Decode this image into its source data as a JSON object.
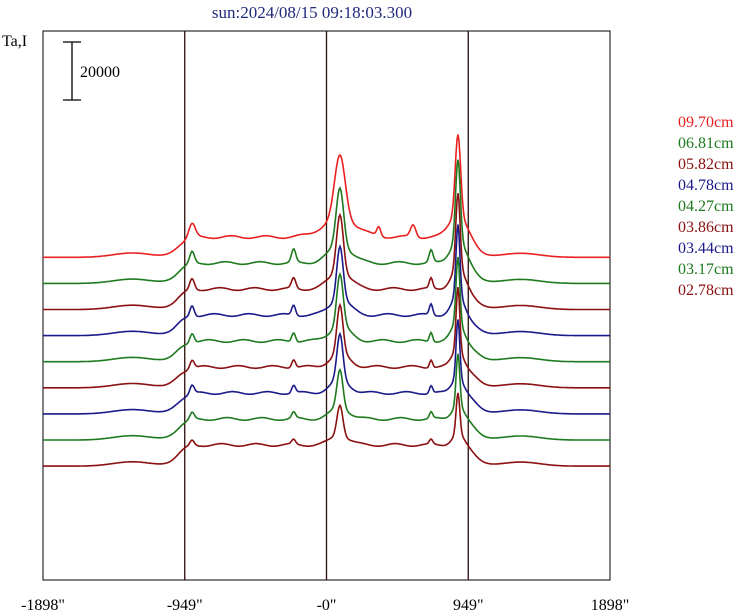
{
  "chart_data": {
    "type": "line",
    "title": "sun:2024/08/15 09:18:03.300",
    "ylabel": "Ta,I",
    "xlabel": "",
    "scale_bar_label": "20000",
    "scale_bar_value": 20000,
    "x_ticks": [
      {
        "value": -1898,
        "label": "-1898\""
      },
      {
        "value": -949,
        "label": "-949\""
      },
      {
        "value": 0,
        "label": "-0\""
      },
      {
        "value": 949,
        "label": "949\""
      },
      {
        "value": 1898,
        "label": "1898\""
      }
    ],
    "xlim": [
      -1898,
      1898
    ],
    "vertical_markers": [
      -949,
      0,
      949
    ],
    "legend_position": "right",
    "series": [
      {
        "name": "09.70cm",
        "color": "#e82020",
        "baseline_intensity": 0,
        "spikes": [
          [
            -900,
            4800,
            30
          ],
          [
            350,
            3200,
            18
          ],
          [
            580,
            4200,
            25
          ]
        ],
        "peaks": [
          [
            90,
            28000,
            50
          ],
          [
            880,
            36000,
            25
          ]
        ]
      },
      {
        "name": "06.81cm",
        "color": "#1e7a1e",
        "baseline_intensity": -9000,
        "spikes": [
          [
            -900,
            4000,
            22
          ],
          [
            -220,
            4500,
            20
          ],
          [
            700,
            4200,
            18
          ]
        ],
        "peaks": [
          [
            90,
            26000,
            35
          ],
          [
            880,
            36000,
            22
          ]
        ]
      },
      {
        "name": "05.82cm",
        "color": "#8b1010",
        "baseline_intensity": -18000,
        "spikes": [
          [
            -900,
            3800,
            22
          ],
          [
            -220,
            3600,
            20
          ],
          [
            700,
            3500,
            16
          ]
        ],
        "peaks": [
          [
            90,
            26000,
            32
          ],
          [
            880,
            33000,
            20
          ]
        ]
      },
      {
        "name": "04.78cm",
        "color": "#1a1a8a",
        "baseline_intensity": -27000,
        "spikes": [
          [
            -900,
            3800,
            20
          ],
          [
            -220,
            3500,
            18
          ],
          [
            700,
            3800,
            16
          ]
        ],
        "peaks": [
          [
            90,
            24000,
            30
          ],
          [
            880,
            31000,
            18
          ]
        ]
      },
      {
        "name": "04.27cm",
        "color": "#1e7a1e",
        "baseline_intensity": -36000,
        "spikes": [
          [
            -900,
            3300,
            20
          ],
          [
            -220,
            3200,
            18
          ],
          [
            700,
            3300,
            15
          ]
        ],
        "peaks": [
          [
            90,
            23000,
            30
          ],
          [
            880,
            29000,
            18
          ]
        ]
      },
      {
        "name": "03.86cm",
        "color": "#8b1010",
        "baseline_intensity": -45000,
        "spikes": [
          [
            -900,
            2900,
            20
          ],
          [
            -220,
            2800,
            18
          ],
          [
            700,
            2800,
            15
          ]
        ],
        "peaks": [
          [
            90,
            21000,
            28
          ],
          [
            880,
            28000,
            17
          ]
        ]
      },
      {
        "name": "03.44cm",
        "color": "#1a1a8a",
        "baseline_intensity": -54000,
        "spikes": [
          [
            -900,
            2900,
            20
          ],
          [
            -220,
            2600,
            18
          ],
          [
            700,
            2600,
            15
          ]
        ],
        "peaks": [
          [
            90,
            20000,
            28
          ],
          [
            880,
            26000,
            17
          ]
        ]
      },
      {
        "name": "03.17cm",
        "color": "#1e7a1e",
        "baseline_intensity": -63000,
        "spikes": [
          [
            -900,
            2300,
            20
          ],
          [
            -220,
            2100,
            18
          ],
          [
            700,
            2200,
            15
          ]
        ],
        "peaks": [
          [
            90,
            17000,
            28
          ],
          [
            880,
            23000,
            17
          ]
        ]
      },
      {
        "name": "02.78cm",
        "color": "#8b1010",
        "baseline_intensity": -72000,
        "spikes": [
          [
            -900,
            1800,
            20
          ],
          [
            -220,
            1600,
            18
          ],
          [
            700,
            1600,
            15
          ]
        ],
        "peaks": [
          [
            90,
            14000,
            28
          ],
          [
            880,
            18000,
            17
          ]
        ]
      }
    ]
  }
}
